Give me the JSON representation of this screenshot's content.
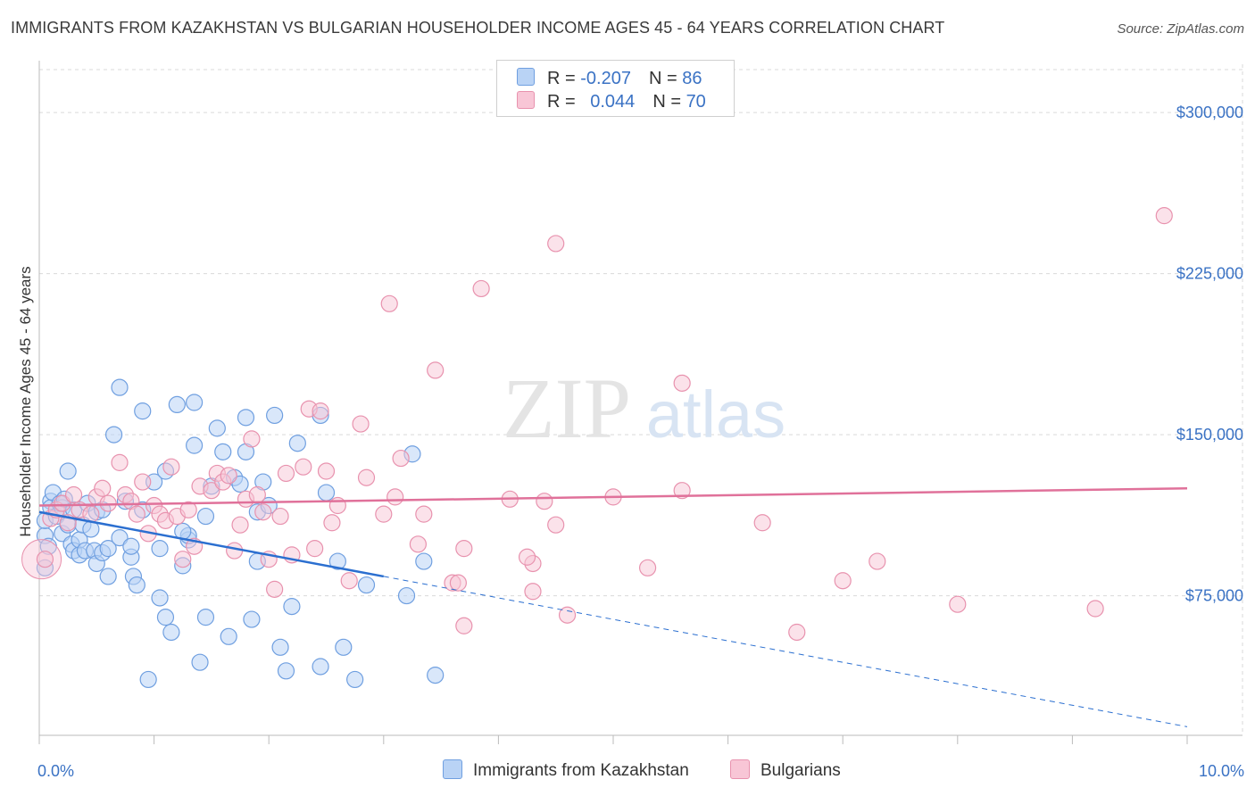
{
  "title": "IMMIGRANTS FROM KAZAKHSTAN VS BULGARIAN HOUSEHOLDER INCOME AGES 45 - 64 YEARS CORRELATION CHART",
  "source": "Source: ZipAtlas.com",
  "watermark": {
    "zip": "ZIP",
    "atlas": "atlas"
  },
  "legend": {
    "rows": [
      {
        "r_label": "R = ",
        "r_value": "-0.207",
        "n_label": "N = ",
        "n_value": "86"
      },
      {
        "r_label": "R = ",
        "r_value": "0.044",
        "n_label": "N = ",
        "n_value": "70"
      }
    ]
  },
  "bottom_legend": [
    "Immigrants from Kazakhstan",
    "Bulgarians"
  ],
  "colors": {
    "kazakhstan_fill": "#b9d3f5",
    "kazakhstan_stroke": "#6f9fe0",
    "kazakhstan_line": "#2b6fd0",
    "bulgarian_fill": "#f8c6d6",
    "bulgarian_stroke": "#e892ae",
    "bulgarian_line": "#e0719a",
    "tick_text": "#3a72c4",
    "grid": "#d9d9d9"
  },
  "chart_data": {
    "type": "scatter",
    "ylabel": "Householder Income Ages 45 - 64 years",
    "x_tick_labels": [
      "0.0%",
      "10.0%"
    ],
    "y_tick_labels": [
      "$75,000",
      "$150,000",
      "$225,000",
      "$300,000"
    ],
    "xlim": [
      0,
      10
    ],
    "ylim": [
      10000,
      320000
    ],
    "y_ticks": [
      75000,
      150000,
      225000,
      300000
    ],
    "series": [
      {
        "name": "Immigrants from Kazakhstan",
        "r": -0.207,
        "n": 86,
        "trend": {
          "solid": [
            [
              0,
              114000
            ],
            [
              3.0,
              84000
            ]
          ],
          "dashed": [
            [
              3.0,
              84000
            ],
            [
              10.0,
              14000
            ]
          ]
        },
        "points": [
          [
            0.05,
            88000
          ],
          [
            0.05,
            103000
          ],
          [
            0.05,
            110000
          ],
          [
            0.08,
            98000
          ],
          [
            0.1,
            119000
          ],
          [
            0.1,
            116000
          ],
          [
            0.12,
            123000
          ],
          [
            0.15,
            112000
          ],
          [
            0.18,
            118000
          ],
          [
            0.2,
            104000
          ],
          [
            0.2,
            116000
          ],
          [
            0.22,
            120000
          ],
          [
            0.25,
            133000
          ],
          [
            0.25,
            108000
          ],
          [
            0.28,
            99000
          ],
          [
            0.3,
            96000
          ],
          [
            0.3,
            115000
          ],
          [
            0.35,
            94000
          ],
          [
            0.35,
            101000
          ],
          [
            0.38,
            108000
          ],
          [
            0.4,
            96000
          ],
          [
            0.42,
            118000
          ],
          [
            0.45,
            106000
          ],
          [
            0.48,
            96000
          ],
          [
            0.5,
            90000
          ],
          [
            0.5,
            114000
          ],
          [
            0.55,
            115000
          ],
          [
            0.55,
            95000
          ],
          [
            0.6,
            97000
          ],
          [
            0.6,
            84000
          ],
          [
            0.65,
            150000
          ],
          [
            0.7,
            172000
          ],
          [
            0.7,
            102000
          ],
          [
            0.75,
            119000
          ],
          [
            0.8,
            93000
          ],
          [
            0.8,
            98000
          ],
          [
            0.82,
            84000
          ],
          [
            0.85,
            80000
          ],
          [
            0.9,
            161000
          ],
          [
            0.9,
            115000
          ],
          [
            0.95,
            36000
          ],
          [
            1.0,
            128000
          ],
          [
            1.05,
            74000
          ],
          [
            1.05,
            97000
          ],
          [
            1.1,
            133000
          ],
          [
            1.1,
            65000
          ],
          [
            1.15,
            58000
          ],
          [
            1.2,
            164000
          ],
          [
            1.25,
            89000
          ],
          [
            1.3,
            101000
          ],
          [
            1.3,
            103000
          ],
          [
            1.35,
            145000
          ],
          [
            1.35,
            165000
          ],
          [
            1.4,
            44000
          ],
          [
            1.45,
            112000
          ],
          [
            1.45,
            65000
          ],
          [
            1.5,
            126000
          ],
          [
            1.55,
            153000
          ],
          [
            1.6,
            142000
          ],
          [
            1.65,
            56000
          ],
          [
            1.7,
            130000
          ],
          [
            1.75,
            127000
          ],
          [
            1.8,
            142000
          ],
          [
            1.8,
            158000
          ],
          [
            1.85,
            64000
          ],
          [
            1.9,
            91000
          ],
          [
            1.9,
            114000
          ],
          [
            1.95,
            128000
          ],
          [
            2.0,
            117000
          ],
          [
            2.05,
            159000
          ],
          [
            2.1,
            51000
          ],
          [
            2.15,
            40000
          ],
          [
            2.2,
            70000
          ],
          [
            2.25,
            146000
          ],
          [
            2.45,
            42000
          ],
          [
            2.45,
            159000
          ],
          [
            2.5,
            123000
          ],
          [
            2.6,
            91000
          ],
          [
            2.65,
            51000
          ],
          [
            2.75,
            36000
          ],
          [
            2.85,
            80000
          ],
          [
            3.2,
            75000
          ],
          [
            3.25,
            141000
          ],
          [
            3.35,
            91000
          ],
          [
            3.45,
            38000
          ],
          [
            1.25,
            105000
          ]
        ]
      },
      {
        "name": "Bulgarians",
        "r": 0.044,
        "n": 70,
        "trend": {
          "solid": [
            [
              0,
              117000
            ],
            [
              10.0,
              125000
            ]
          ]
        },
        "points": [
          [
            0.05,
            92000
          ],
          [
            0.1,
            111000
          ],
          [
            0.15,
            115000
          ],
          [
            0.2,
            118000
          ],
          [
            0.25,
            109000
          ],
          [
            0.3,
            122000
          ],
          [
            0.35,
            115000
          ],
          [
            0.45,
            113000
          ],
          [
            0.5,
            121000
          ],
          [
            0.55,
            125000
          ],
          [
            0.6,
            118000
          ],
          [
            0.7,
            137000
          ],
          [
            0.75,
            122000
          ],
          [
            0.8,
            119000
          ],
          [
            0.85,
            113000
          ],
          [
            0.9,
            128000
          ],
          [
            0.95,
            104000
          ],
          [
            1.0,
            117000
          ],
          [
            1.05,
            113000
          ],
          [
            1.1,
            110000
          ],
          [
            1.15,
            135000
          ],
          [
            1.2,
            112000
          ],
          [
            1.25,
            92000
          ],
          [
            1.3,
            115000
          ],
          [
            1.35,
            98000
          ],
          [
            1.4,
            126000
          ],
          [
            1.5,
            124000
          ],
          [
            1.55,
            132000
          ],
          [
            1.6,
            128000
          ],
          [
            1.65,
            131000
          ],
          [
            1.7,
            96000
          ],
          [
            1.75,
            108000
          ],
          [
            1.8,
            120000
          ],
          [
            1.85,
            148000
          ],
          [
            1.9,
            122000
          ],
          [
            1.95,
            114000
          ],
          [
            2.0,
            92000
          ],
          [
            2.05,
            78000
          ],
          [
            2.1,
            112000
          ],
          [
            2.15,
            132000
          ],
          [
            2.2,
            94000
          ],
          [
            2.3,
            135000
          ],
          [
            2.35,
            162000
          ],
          [
            2.4,
            97000
          ],
          [
            2.45,
            161000
          ],
          [
            2.5,
            133000
          ],
          [
            2.55,
            109000
          ],
          [
            2.6,
            117000
          ],
          [
            2.7,
            82000
          ],
          [
            2.8,
            155000
          ],
          [
            2.85,
            130000
          ],
          [
            3.0,
            113000
          ],
          [
            3.05,
            211000
          ],
          [
            3.1,
            121000
          ],
          [
            3.15,
            139000
          ],
          [
            3.3,
            99000
          ],
          [
            3.35,
            113000
          ],
          [
            3.45,
            180000
          ],
          [
            3.6,
            81000
          ],
          [
            3.65,
            81000
          ],
          [
            3.7,
            97000
          ],
          [
            3.7,
            61000
          ],
          [
            3.85,
            218000
          ],
          [
            4.1,
            120000
          ],
          [
            4.3,
            90000
          ],
          [
            4.5,
            239000
          ],
          [
            4.6,
            66000
          ],
          [
            5.0,
            121000
          ],
          [
            5.3,
            88000
          ],
          [
            5.6,
            174000
          ]
        ]
      }
    ],
    "extra_bulgarian_points": [
      [
        4.25,
        93000
      ],
      [
        4.3,
        77000
      ],
      [
        4.5,
        108000
      ],
      [
        4.4,
        119000
      ],
      [
        5.6,
        124000
      ],
      [
        6.3,
        109000
      ],
      [
        6.6,
        58000
      ],
      [
        7.0,
        82000
      ],
      [
        7.3,
        91000
      ],
      [
        8.0,
        71000
      ],
      [
        9.2,
        69000
      ],
      [
        9.8,
        252000
      ]
    ]
  }
}
